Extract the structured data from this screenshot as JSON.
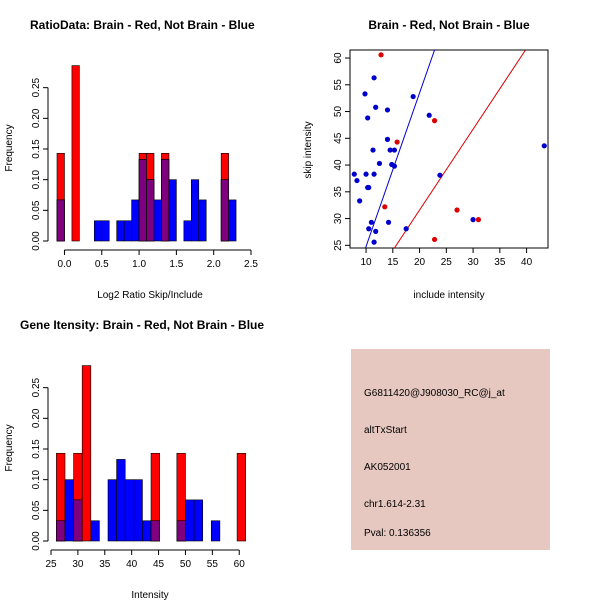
{
  "colors": {
    "red": "#ff0000",
    "blue": "#0000ff",
    "overlap": "#7f007f",
    "red_point": "#dd0000",
    "blue_point": "#0000cc",
    "red_line": "#dd0000",
    "blue_line": "#0000cc",
    "info_bg": "#e6c8c0",
    "pval": "#aa0000"
  },
  "info_panel": {
    "probe_id": "G6811420@J908030_RC@j_at",
    "event_type": "altTxStart",
    "accession": "AK052001",
    "location": "chr1.614-2.31",
    "pval": "Pval: 0.136356"
  },
  "chart_data": [
    {
      "type": "bar",
      "title": "RatioData: Brain - Red, Not Brain - Blue",
      "xlabel": "Log2 Ratio Skip/Include",
      "ylabel": "Frequency",
      "xlim": [
        -0.1,
        2.5
      ],
      "ylim": [
        0,
        0.3
      ],
      "xticks": [
        0.0,
        0.5,
        1.0,
        1.5,
        2.0,
        2.5
      ],
      "xtick_labels": [
        "0.0",
        "0.5",
        "1.0",
        "1.5",
        "2.0",
        "2.5"
      ],
      "yticks": [
        0.0,
        0.05,
        0.1,
        0.15,
        0.2,
        0.25
      ],
      "ytick_labels": [
        "0.00",
        "0.05",
        "0.10",
        "0.15",
        "0.20",
        "0.25"
      ],
      "bin_width": 0.1,
      "bin_starts": [
        -0.1,
        0.0,
        0.1,
        0.2,
        0.3,
        0.4,
        0.5,
        0.6,
        0.7,
        0.8,
        0.9,
        1.0,
        1.1,
        1.2,
        1.3,
        1.4,
        1.5,
        1.6,
        1.7,
        1.8,
        1.9,
        2.0,
        2.1,
        2.2,
        2.3
      ],
      "series": [
        {
          "name": "Brain",
          "color": "red",
          "values": [
            0.143,
            0,
            0.286,
            0,
            0,
            0,
            0,
            0,
            0,
            0,
            0,
            0.143,
            0.143,
            0,
            0.143,
            0,
            0,
            0,
            0,
            0,
            0,
            0,
            0.143,
            0,
            0
          ]
        },
        {
          "name": "Not Brain",
          "color": "blue",
          "values": [
            0.067,
            0,
            0,
            0,
            0,
            0.033,
            0.033,
            0,
            0.033,
            0.033,
            0.067,
            0.133,
            0.1,
            0.067,
            0.133,
            0.1,
            0,
            0.033,
            0.1,
            0.067,
            0,
            0,
            0.1,
            0.067,
            0
          ]
        }
      ]
    },
    {
      "type": "scatter",
      "title": "Brain - Red, Not Brain - Blue",
      "xlabel": "include intensity",
      "ylabel": "skip intensity",
      "xlim": [
        7,
        44
      ],
      "ylim": [
        24.5,
        61.5
      ],
      "xticks": [
        10,
        15,
        20,
        25,
        30,
        35,
        40
      ],
      "yticks": [
        25,
        30,
        35,
        40,
        45,
        50,
        55,
        60
      ],
      "series": [
        {
          "name": "Brain",
          "color": "red",
          "points": [
            [
              12.8,
              60.6
            ],
            [
              22.8,
              48.3
            ],
            [
              15.8,
              44.3
            ],
            [
              13.5,
              32.2
            ],
            [
              27.0,
              31.6
            ],
            [
              31.0,
              29.8
            ],
            [
              22.8,
              26.1
            ]
          ]
        },
        {
          "name": "Not Brain",
          "color": "blue",
          "points": [
            [
              11.5,
              56.3
            ],
            [
              9.8,
              53.3
            ],
            [
              18.8,
              52.8
            ],
            [
              11.8,
              50.8
            ],
            [
              14.0,
              50.3
            ],
            [
              10.3,
              48.8
            ],
            [
              21.8,
              49.3
            ],
            [
              14.0,
              44.8
            ],
            [
              11.3,
              42.8
            ],
            [
              14.5,
              42.8
            ],
            [
              15.3,
              42.8
            ],
            [
              12.5,
              40.3
            ],
            [
              14.8,
              40.1
            ],
            [
              15.3,
              39.8
            ],
            [
              7.8,
              38.3
            ],
            [
              10.0,
              38.3
            ],
            [
              11.5,
              38.3
            ],
            [
              8.3,
              37.1
            ],
            [
              23.8,
              38.1
            ],
            [
              10.3,
              35.8
            ],
            [
              10.5,
              35.8
            ],
            [
              8.8,
              33.3
            ],
            [
              43.3,
              43.6
            ],
            [
              30.0,
              29.8
            ],
            [
              14.2,
              29.3
            ],
            [
              11.0,
              29.3
            ],
            [
              10.5,
              28.1
            ],
            [
              17.5,
              28.1
            ],
            [
              11.8,
              27.6
            ],
            [
              11.5,
              25.6
            ]
          ]
        }
      ],
      "lines": [
        {
          "name": "Brain fit",
          "color": "red",
          "points": [
            [
              15.3,
              24.5
            ],
            [
              39.8,
              61.5
            ]
          ]
        },
        {
          "name": "Not Brain fit",
          "color": "blue",
          "points": [
            [
              9.9,
              24.5
            ],
            [
              22.8,
              61.5
            ]
          ]
        }
      ]
    },
    {
      "type": "bar",
      "title": "Gene Itensity: Brain - Red, Not Brain - Blue",
      "xlabel": "Intensity",
      "ylabel": "Frequency",
      "xlim": [
        25,
        62
      ],
      "ylim": [
        0,
        0.3
      ],
      "xticks": [
        25,
        30,
        35,
        40,
        45,
        50,
        55,
        60
      ],
      "xtick_labels": [
        "25",
        "30",
        "35",
        "40",
        "45",
        "50",
        "55",
        "60"
      ],
      "yticks": [
        0.0,
        0.05,
        0.1,
        0.15,
        0.2,
        0.25
      ],
      "ytick_labels": [
        "0.00",
        "0.05",
        "0.10",
        "0.15",
        "0.20",
        "0.25"
      ],
      "bin_width": 1.6,
      "bin_starts": [
        26.0,
        27.6,
        29.2,
        30.8,
        32.4,
        34.0,
        35.6,
        37.2,
        38.8,
        40.4,
        42.0,
        43.6,
        45.2,
        46.8,
        48.4,
        50.0,
        51.6,
        53.2,
        54.8,
        56.4,
        58.0,
        59.6
      ],
      "series": [
        {
          "name": "Brain",
          "color": "red",
          "values": [
            0.143,
            0,
            0.143,
            0.286,
            0,
            0,
            0,
            0,
            0,
            0,
            0,
            0.143,
            0,
            0,
            0.143,
            0,
            0,
            0,
            0,
            0,
            0,
            0.143
          ]
        },
        {
          "name": "Not Brain",
          "color": "blue",
          "values": [
            0.033,
            0.1,
            0.067,
            0,
            0.033,
            0,
            0.1,
            0.133,
            0.1,
            0.1,
            0.033,
            0.033,
            0,
            0,
            0.033,
            0.067,
            0.067,
            0,
            0.033,
            0,
            0,
            0
          ]
        }
      ]
    }
  ]
}
